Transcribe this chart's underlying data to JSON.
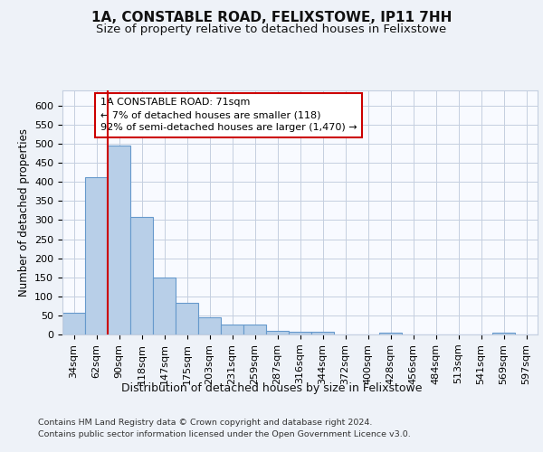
{
  "title1": "1A, CONSTABLE ROAD, FELIXSTOWE, IP11 7HH",
  "title2": "Size of property relative to detached houses in Felixstowe",
  "xlabel": "Distribution of detached houses by size in Felixstowe",
  "ylabel": "Number of detached properties",
  "categories": [
    "34sqm",
    "62sqm",
    "90sqm",
    "118sqm",
    "147sqm",
    "175sqm",
    "203sqm",
    "231sqm",
    "259sqm",
    "287sqm",
    "316sqm",
    "344sqm",
    "372sqm",
    "400sqm",
    "428sqm",
    "456sqm",
    "484sqm",
    "513sqm",
    "541sqm",
    "569sqm",
    "597sqm"
  ],
  "values": [
    58,
    412,
    495,
    307,
    150,
    82,
    45,
    25,
    25,
    10,
    8,
    7,
    0,
    0,
    5,
    0,
    0,
    0,
    0,
    5,
    0
  ],
  "bar_color": "#b8cfe8",
  "bar_edge_color": "#6699cc",
  "red_line_x": 1.5,
  "annotation_text": "1A CONSTABLE ROAD: 71sqm\n← 7% of detached houses are smaller (118)\n92% of semi-detached houses are larger (1,470) →",
  "annotation_box_color": "#ffffff",
  "annotation_box_edge_color": "#cc0000",
  "ylim": [
    0,
    640
  ],
  "yticks": [
    0,
    50,
    100,
    150,
    200,
    250,
    300,
    350,
    400,
    450,
    500,
    550,
    600
  ],
  "footer1": "Contains HM Land Registry data © Crown copyright and database right 2024.",
  "footer2": "Contains public sector information licensed under the Open Government Licence v3.0.",
  "bg_color": "#eef2f8",
  "plot_bg_color": "#f8faff",
  "grid_color": "#c5cfe0",
  "title1_fontsize": 11,
  "title2_fontsize": 9.5,
  "xlabel_fontsize": 9,
  "ylabel_fontsize": 8.5,
  "tick_fontsize": 8,
  "footer_fontsize": 6.8
}
